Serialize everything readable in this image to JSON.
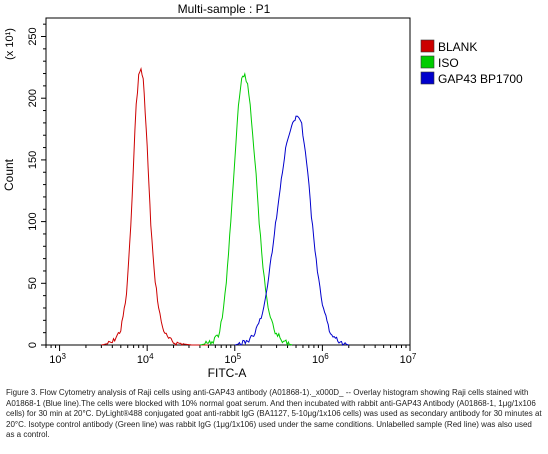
{
  "chart_data": {
    "type": "line",
    "title": "Multi-sample : P1",
    "xlabel": "FITC-A",
    "ylabel": "Count",
    "y_multiplier_label": "(x 10¹)",
    "x_scale": "log",
    "xlim": [
      700,
      10000000
    ],
    "ylim": [
      0,
      265
    ],
    "x_ticks": [
      {
        "value": 1000,
        "base": "10",
        "exp": "3"
      },
      {
        "value": 10000,
        "base": "10",
        "exp": "4"
      },
      {
        "value": 100000,
        "base": "10",
        "exp": "5"
      },
      {
        "value": 1000000,
        "base": "10",
        "exp": "6"
      },
      {
        "value": 10000000,
        "base": "10",
        "exp": "7"
      }
    ],
    "y_ticks": [
      "0",
      "50",
      "100",
      "150",
      "200",
      "250"
    ],
    "legend_position": "top-right",
    "series": [
      {
        "name": "BLANK",
        "color": "#cc0000",
        "x": [
          3000,
          4000,
          5000,
          5800,
          6500,
          7000,
          7500,
          8000,
          8500,
          9000,
          9500,
          10000,
          10500,
          11000,
          12000,
          13500,
          15000,
          17000,
          20000,
          25000,
          32000,
          50000
        ],
        "y": [
          0,
          2,
          12,
          40,
          95,
          150,
          195,
          218,
          224,
          215,
          190,
          160,
          128,
          98,
          60,
          30,
          14,
          6,
          2,
          1,
          0,
          0
        ]
      },
      {
        "name": "ISO",
        "color": "#00cc00",
        "x": [
          40000,
          55000,
          65000,
          72000,
          80000,
          90000,
          100000,
          110000,
          120000,
          130000,
          140000,
          150000,
          160000,
          175000,
          190000,
          210000,
          240000,
          280000,
          350000,
          450000
        ],
        "y": [
          0,
          2,
          8,
          22,
          50,
          100,
          150,
          192,
          215,
          220,
          210,
          195,
          170,
          140,
          100,
          62,
          30,
          12,
          4,
          0
        ]
      },
      {
        "name": "GAP43 BP1700",
        "color": "#0000cc",
        "x": [
          100000,
          140000,
          170000,
          200000,
          230000,
          260000,
          300000,
          340000,
          380000,
          420000,
          460000,
          500000,
          540000,
          580000,
          620000,
          680000,
          750000,
          850000,
          1000000,
          1200000,
          1500000,
          2000000
        ],
        "y": [
          0,
          3,
          10,
          22,
          42,
          70,
          105,
          135,
          158,
          172,
          180,
          185,
          183,
          178,
          165,
          140,
          105,
          68,
          32,
          12,
          3,
          0
        ]
      }
    ]
  },
  "caption": "Figure 3. Flow Cytometry analysis of Raji cells using anti-GAP43 antibody (A01868-1)._x000D_ -- Overlay histogram showing Raji cells stained with A01868-1 (Blue line).The cells were blocked with 10% normal goat serum. And then incubated with rabbit anti-GAP43 Antibody (A01868-1, 1μg/1x106 cells) for 30 min at 20°C. DyLight®488 conjugated goat anti-rabbit IgG (BA1127, 5-10μg/1x106 cells) was used as secondary antibody for 30 minutes at 20°C. Isotype control antibody (Green line) was rabbit IgG (1μg/1x106) used under the same conditions. Unlabelled sample (Red line) was also used as a control."
}
